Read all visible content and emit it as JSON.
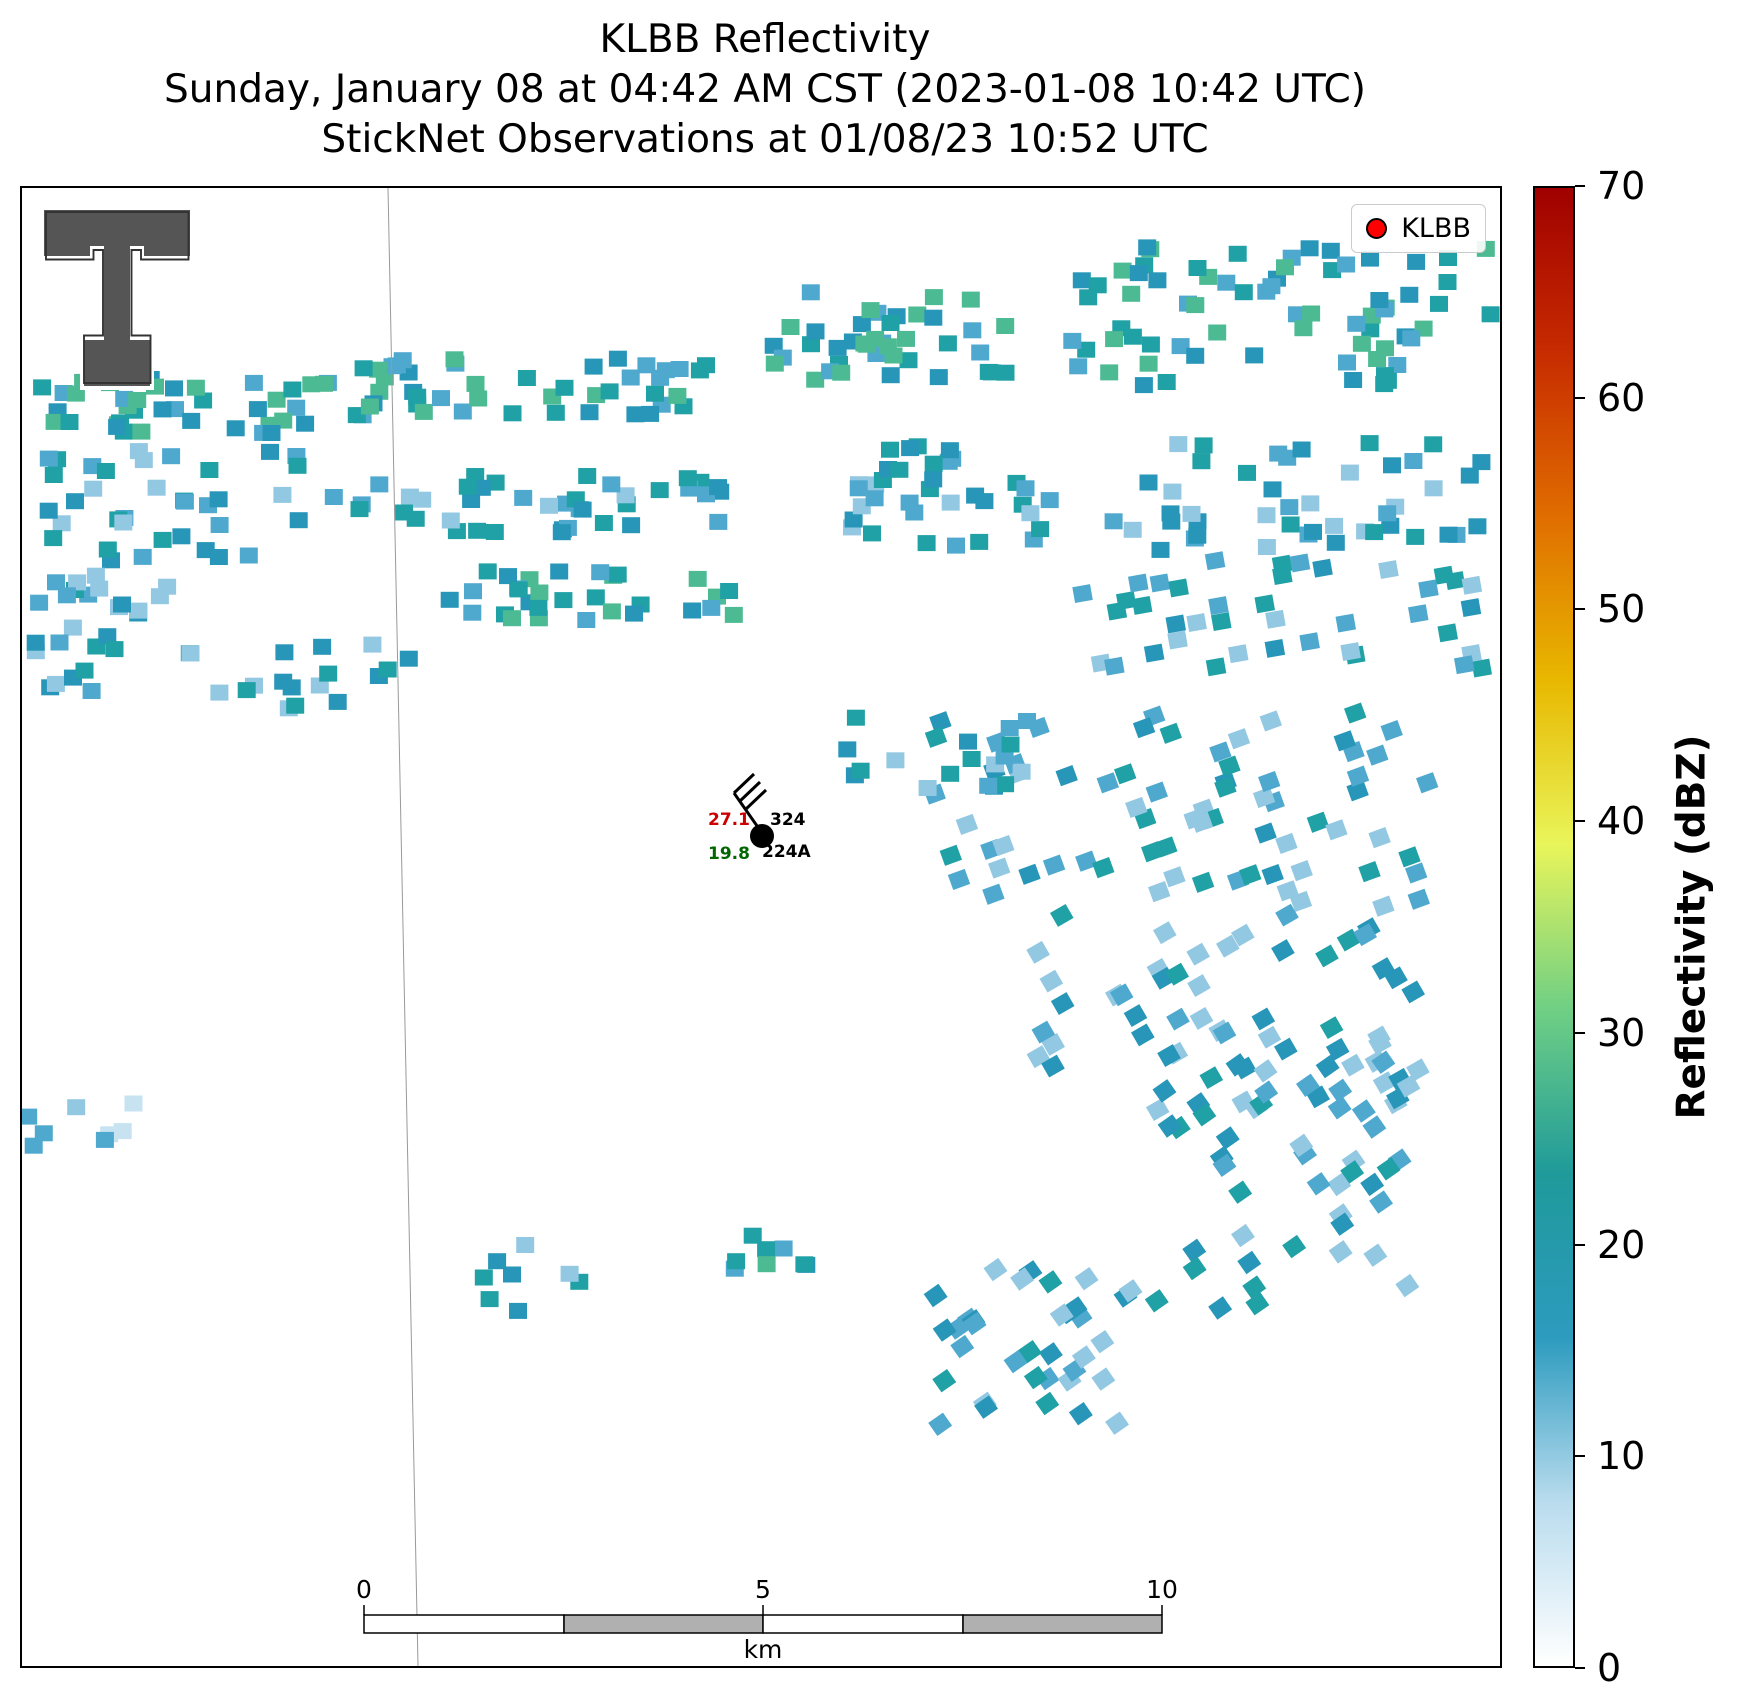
{
  "title": {
    "line1": "KLBB Reflectivity",
    "line2": "Sunday, January 08 at 04:42 AM CST (2023-01-08 10:42 UTC)",
    "line3": "StickNet Observations at 01/08/23 10:52 UTC"
  },
  "legend": {
    "label": "KLBB",
    "color": "#ff0000"
  },
  "station": {
    "temperature": "27.1",
    "dewpoint": "19.8",
    "pressure": "324",
    "id": "224A",
    "temperature_color": "#cc0000",
    "dewpoint_color": "#006600"
  },
  "scalebar": {
    "ticks": [
      "0",
      "5",
      "10"
    ],
    "unit": "km"
  },
  "colorbar": {
    "label": "Reflectivity (dBZ)",
    "ticks": [
      "0",
      "10",
      "20",
      "30",
      "40",
      "50",
      "60",
      "70"
    ],
    "min": 0,
    "max": 70,
    "colors": [
      "#ffffff",
      "#b9dcee",
      "#2d9bbf",
      "#1f9a9a",
      "#6fcf84",
      "#e9f55a",
      "#e8b800",
      "#e06d00",
      "#c72b00",
      "#a00000"
    ]
  },
  "logo": {
    "letter": "T",
    "icon": "texas-tech-double-t-logo"
  }
}
